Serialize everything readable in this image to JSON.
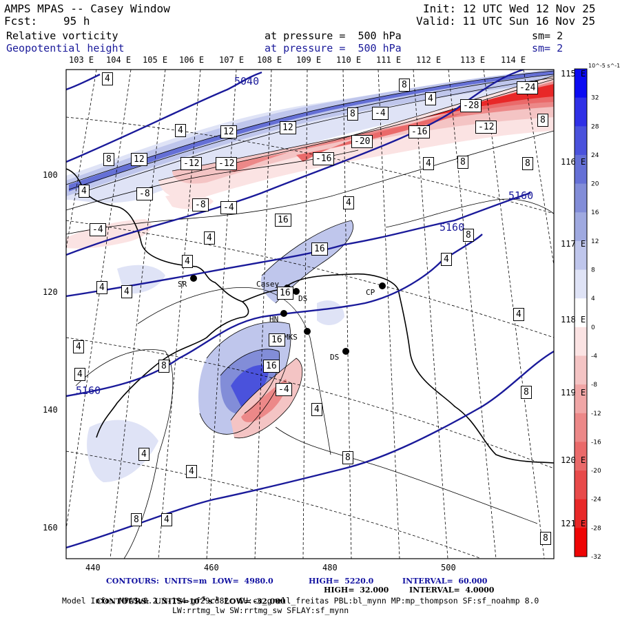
{
  "header": {
    "title": "AMPS MPAS -- Casey Window",
    "init": "Init: 12 UTC Wed 12 Nov 25",
    "fcst_label": "Fcst:",
    "fcst_value": "95 h",
    "valid": "Valid: 11 UTC Sun 16 Nov 25",
    "field1_name": "Relative vorticity",
    "field1_level": "at pressure =  500 hPa",
    "field1_sm": "sm= 2",
    "field2_name": "Geopotential height",
    "field2_level": "at pressure =  500 hPa",
    "field2_sm": "sm= 2"
  },
  "top_lon_labels": [
    "103 E",
    "104 E",
    "105 E",
    "106 E",
    "107 E",
    "108 E",
    "109 E",
    "110 E",
    "111 E",
    "112 E",
    "113 E",
    "114 E"
  ],
  "right_lon_labels": [
    "115 E",
    "116 E",
    "117 E",
    "118 E",
    "119 E",
    "120 E",
    "121 E"
  ],
  "x_ticks": [
    "440",
    "460",
    "480",
    "500"
  ],
  "y_ticks": [
    "100",
    "120",
    "140",
    "160"
  ],
  "colorbar": {
    "units": "10^-5 s^-1",
    "labels": [
      "32",
      "28",
      "24",
      "20",
      "16",
      "12",
      "8",
      "4",
      "0",
      "-4",
      "-8",
      "-12",
      "-16",
      "-20",
      "-24",
      "-28",
      "-32"
    ],
    "colors": [
      "#0b0bf2",
      "#2f30e6",
      "#4a52dc",
      "#6570d6",
      "#828dd8",
      "#9fa9e0",
      "#bfc6ec",
      "#dfe3f6",
      "#ffffff",
      "#fbe3e3",
      "#f4c4c4",
      "#f0a6a6",
      "#ec8888",
      "#ea6a6a",
      "#e84a4a",
      "#e82828",
      "#ee0505"
    ]
  },
  "stations": [
    "SR",
    "Casey",
    "DS",
    "HN",
    "MKS",
    "CP",
    "DS"
  ],
  "contour_labels": [
    "5040",
    "5160",
    "5160",
    "5160",
    "-24",
    "-28",
    "-20",
    "-16",
    "-12",
    "-8",
    "-4",
    "4",
    "8",
    "12",
    "16"
  ],
  "footer": {
    "line1_a": "CONTOURS:  UNITS=m  LOW=  4980.0",
    "line1_b": "HIGH=  5220.0",
    "line1_c": "INTERVAL=  60.000",
    "line2_a": "CONTOURS:  UNITS=10",
    "line2_b": "-5",
    "line2_c": " s",
    "line2_d": "-1",
    "line2_e": "  LOW= -32.000",
    "line2_f": "HIGH=  32.000",
    "line2_g": "INTERVAL=  4.0000",
    "model_info": "Model Info: MPASv8.2.3-194-gf29cd82c CU:cu_grell_freitas PBL:bl_mynn MP:mp_thompson SF:sf_noahmp 8.0",
    "model_info2": "LW:rrtmg_lw SW:rrtmg_sw SFLAY:sf_mynn"
  }
}
